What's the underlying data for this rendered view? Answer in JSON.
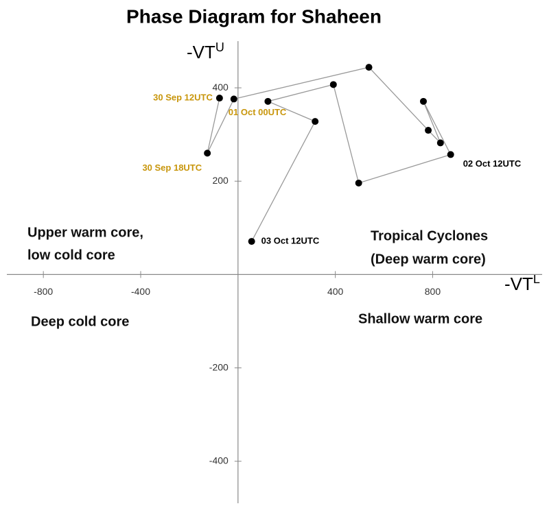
{
  "chart_data": {
    "type": "line",
    "title": "Phase Diagram for Shaheen",
    "x_label": {
      "text": "-VT",
      "sup": "L"
    },
    "y_label": {
      "text": "-VT",
      "sup": "U"
    },
    "annotations": [
      "Upper warm core,",
      "low cold core",
      "Tropical Cyclones",
      "(Deep warm core)",
      "Deep cold core",
      "Shallow warm core"
    ],
    "series": [
      {
        "color": "#000000",
        "line_color": "#999999",
        "x": [
          -76,
          -126,
          -17,
          538,
          782,
          832,
          762,
          874,
          496,
          392,
          123,
          317,
          56
        ],
        "values": [
          378,
          260,
          376,
          444,
          309,
          282,
          371,
          257,
          196,
          407,
          371,
          328,
          71
        ],
        "point_labels": [
          "30 Sep 12UTC",
          "30 Sep 18UTC",
          "01 Oct 00UTC",
          null,
          null,
          null,
          null,
          "02 Oct 12UTC",
          null,
          null,
          null,
          null,
          "03 Oct 12UTC"
        ],
        "label_colors": [
          "#c8960c",
          "#c8960c",
          "#c8960c",
          null,
          null,
          null,
          null,
          "#000000",
          null,
          null,
          null,
          null,
          "#000000"
        ]
      }
    ],
    "xlim": [
      -950,
      1250
    ],
    "ylim": [
      -490,
      500
    ],
    "xticks": [
      -800,
      -400,
      400,
      800
    ],
    "yticks": [
      -400,
      -200,
      200,
      400
    ]
  }
}
